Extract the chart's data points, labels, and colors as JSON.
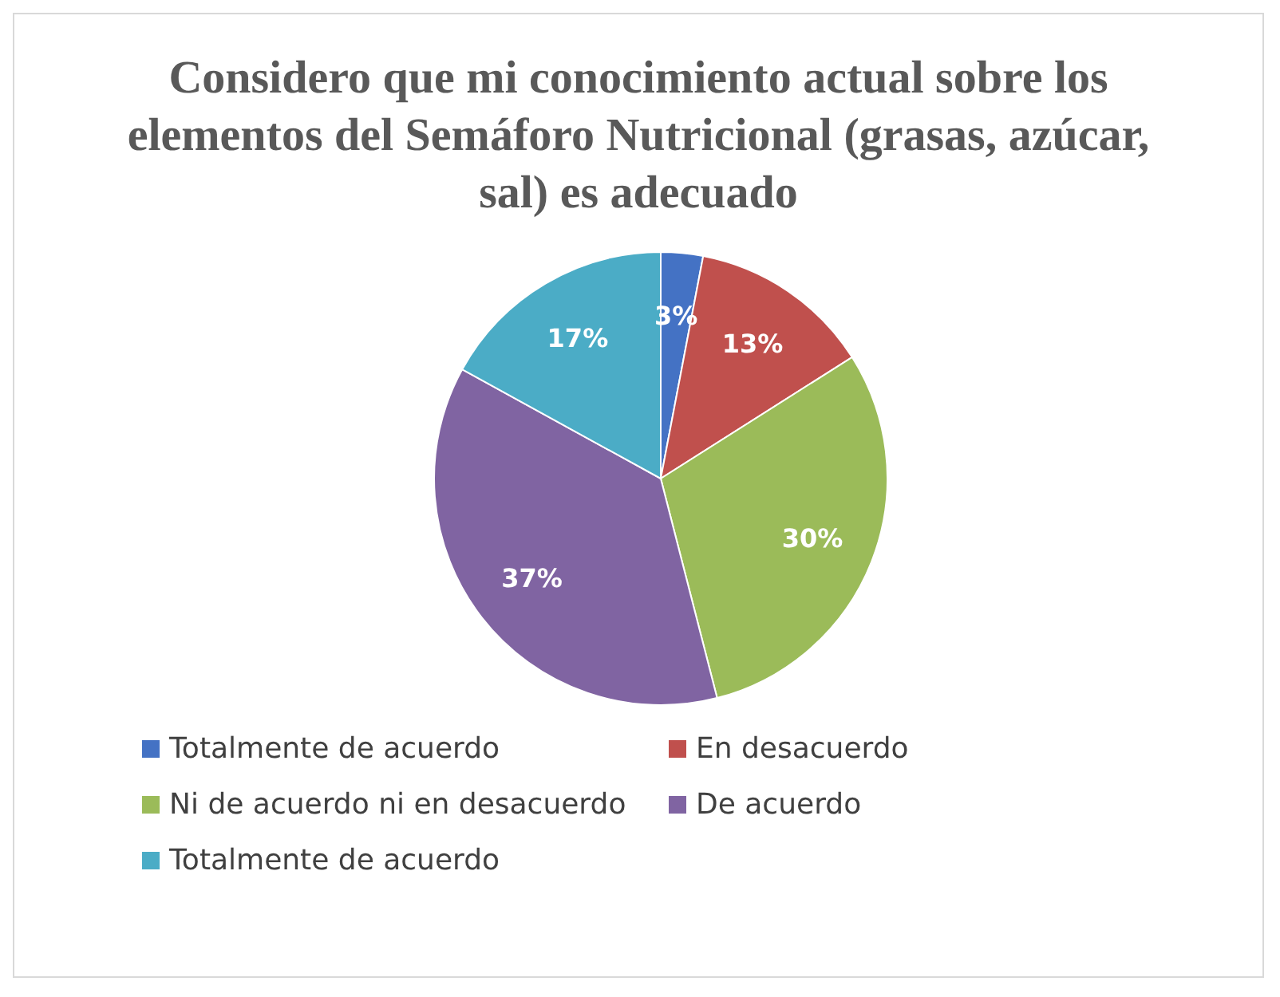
{
  "chart_data": {
    "type": "pie",
    "title": "Considero que mi conocimiento actual sobre los elementos del Semáforo Nutricional (grasas, azúcar, sal) es adecuado",
    "categories": [
      "Totalmente de acuerdo",
      "En desacuerdo",
      "Ni de acuerdo ni en desacuerdo",
      "De acuerdo",
      "Totalmente de acuerdo"
    ],
    "values": [
      3,
      13,
      30,
      37,
      17
    ],
    "colors": [
      "#4472c4",
      "#c0504d",
      "#9bbb59",
      "#8064a2",
      "#4bacc6"
    ],
    "value_labels": [
      "3%",
      "13%",
      "30%",
      "37%",
      "17%"
    ],
    "legend": "bottom"
  }
}
